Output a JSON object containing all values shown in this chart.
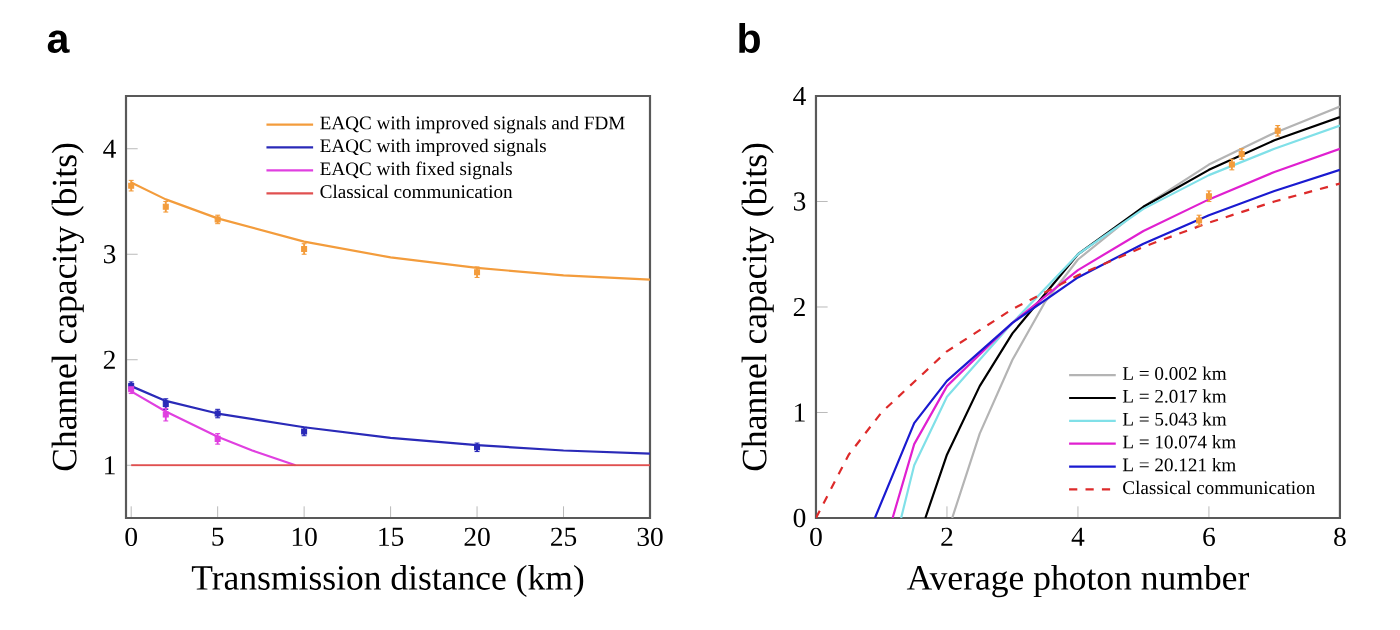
{
  "chart_data": [
    {
      "type": "line",
      "title": "a",
      "xlabel": "Transmission distance (km)",
      "ylabel": "Channel capacity (bits)",
      "xlim": [
        -0.3,
        30
      ],
      "ylim": [
        0.5,
        4.5
      ],
      "xticks": [
        0,
        5,
        10,
        15,
        20,
        25,
        30
      ],
      "yticks": [
        1,
        2,
        3,
        4
      ],
      "legend": "top right",
      "grid": false,
      "series": [
        {
          "name": "EAQC with improved signals and FDM",
          "color": "#f39c3c",
          "x": [
            0,
            2,
            5,
            10,
            15,
            20,
            25,
            30
          ],
          "values": [
            3.68,
            3.52,
            3.34,
            3.12,
            2.97,
            2.87,
            2.8,
            2.76
          ]
        },
        {
          "name": "EAQC with improved signals",
          "color": "#2a2ab8",
          "x": [
            0,
            2,
            5,
            10,
            15,
            20,
            25,
            30
          ],
          "values": [
            1.75,
            1.61,
            1.49,
            1.36,
            1.26,
            1.19,
            1.14,
            1.11
          ]
        },
        {
          "name": "EAQC with fixed signals",
          "color": "#e040e0",
          "x": [
            0,
            2,
            5,
            7,
            9.5
          ],
          "values": [
            1.7,
            1.51,
            1.27,
            1.14,
            1.0
          ]
        },
        {
          "name": "Classical communication",
          "color": "#e05050",
          "x": [
            0,
            30
          ],
          "values": [
            1,
            1
          ]
        },
        {
          "type": "scatter",
          "marker": "square",
          "color": "#f39c3c",
          "x": [
            0,
            2,
            5,
            10,
            20
          ],
          "values": [
            3.65,
            3.45,
            3.33,
            3.05,
            2.83
          ],
          "errors": [
            0.05,
            0.05,
            0.04,
            0.05,
            0.05
          ]
        },
        {
          "type": "scatter",
          "marker": "square",
          "color": "#2a2ab8",
          "x": [
            0,
            2,
            5,
            10,
            20
          ],
          "values": [
            1.75,
            1.58,
            1.49,
            1.32,
            1.17
          ],
          "errors": [
            0.04,
            0.05,
            0.04,
            0.04,
            0.04
          ]
        },
        {
          "type": "scatter",
          "marker": "square",
          "color": "#e040e0",
          "x": [
            0,
            2,
            5
          ],
          "values": [
            1.72,
            1.48,
            1.25
          ],
          "errors": [
            0.04,
            0.06,
            0.05
          ]
        }
      ]
    },
    {
      "type": "line",
      "title": "b",
      "xlabel": "Average photon number",
      "ylabel": "Channel capacity (bits)",
      "xlim": [
        0,
        8
      ],
      "ylim": [
        0,
        4
      ],
      "xticks": [
        0,
        2,
        4,
        6,
        8
      ],
      "yticks": [
        0,
        1,
        2,
        3,
        4
      ],
      "legend": "bottom right",
      "grid": false,
      "series": [
        {
          "name": "L  =  0.002 km",
          "color": "#b4b4b4",
          "x": [
            2.08,
            2.5,
            3,
            3.5,
            4,
            5,
            6,
            7,
            8
          ],
          "values": [
            0,
            0.8,
            1.5,
            2.05,
            2.45,
            2.95,
            3.35,
            3.65,
            3.9
          ]
        },
        {
          "name": "L  =  2.017 km",
          "color": "#000000",
          "x": [
            1.67,
            2,
            2.5,
            3,
            4,
            5,
            6,
            7,
            8
          ],
          "values": [
            0,
            0.6,
            1.25,
            1.75,
            2.5,
            2.95,
            3.3,
            3.58,
            3.8
          ]
        },
        {
          "name": "L  =  5.043 km",
          "color": "#80e0e8",
          "x": [
            1.3,
            1.5,
            2,
            3,
            4,
            5,
            6,
            7,
            8
          ],
          "values": [
            0,
            0.5,
            1.15,
            1.85,
            2.5,
            2.93,
            3.25,
            3.5,
            3.72
          ]
        },
        {
          "name": "L  =  10.074 km",
          "color": "#e020d0",
          "x": [
            1.17,
            1.5,
            2,
            3,
            4,
            5,
            6,
            7,
            8
          ],
          "values": [
            0,
            0.7,
            1.25,
            1.85,
            2.35,
            2.72,
            3.02,
            3.28,
            3.5
          ]
        },
        {
          "name": "L  =  20.121 km",
          "color": "#1a1ad0",
          "x": [
            0.9,
            1.5,
            2,
            3,
            4,
            5,
            6,
            7,
            8
          ],
          "values": [
            0,
            0.9,
            1.3,
            1.85,
            2.28,
            2.6,
            2.87,
            3.1,
            3.3
          ]
        },
        {
          "name": "Classical communication",
          "color": "#dd2a2a",
          "line_style": "dashed",
          "x": [
            0,
            0.5,
            1,
            2,
            3,
            4,
            5,
            6,
            7,
            8
          ],
          "values": [
            0,
            0.6,
            1.0,
            1.58,
            1.98,
            2.3,
            2.57,
            2.8,
            3.0,
            3.17
          ]
        },
        {
          "type": "scatter",
          "marker": "square",
          "color": "#f39c3c",
          "x": [
            5.85,
            6.0,
            6.35,
            6.5,
            7.05
          ],
          "values": [
            2.82,
            3.05,
            3.35,
            3.45,
            3.67
          ],
          "errors": [
            0.05,
            0.05,
            0.05,
            0.05,
            0.05
          ]
        }
      ]
    }
  ]
}
